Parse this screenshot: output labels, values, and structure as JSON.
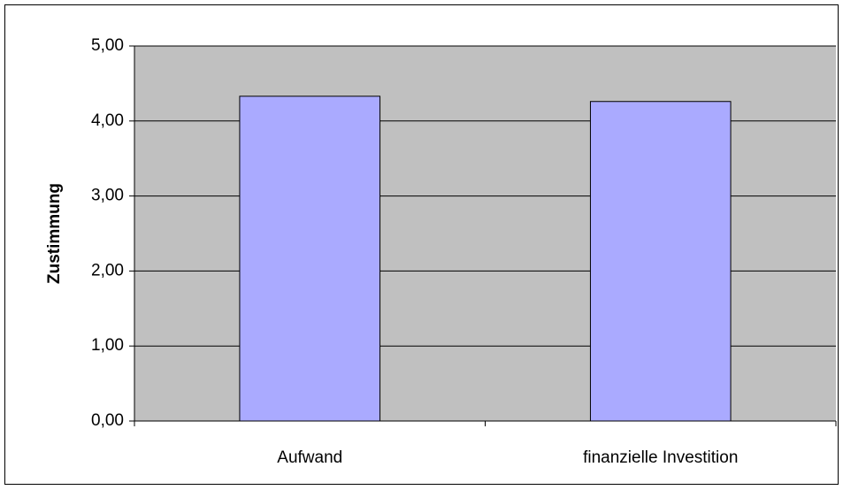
{
  "chart_data": {
    "type": "bar",
    "y_label": "Zustimmung",
    "categories": [
      "Aufwand",
      "finanzielle Investition"
    ],
    "values": [
      4.33,
      4.26
    ],
    "color": "#aaaaff",
    "ylim": [
      0,
      5
    ],
    "yticks": [
      {
        "value": 0,
        "label": "0,00"
      },
      {
        "value": 1,
        "label": "1,00"
      },
      {
        "value": 2,
        "label": "2,00"
      },
      {
        "value": 3,
        "label": "3,00"
      },
      {
        "value": 4,
        "label": "4,00"
      },
      {
        "value": 5,
        "label": "5,00"
      }
    ],
    "grid": true
  }
}
